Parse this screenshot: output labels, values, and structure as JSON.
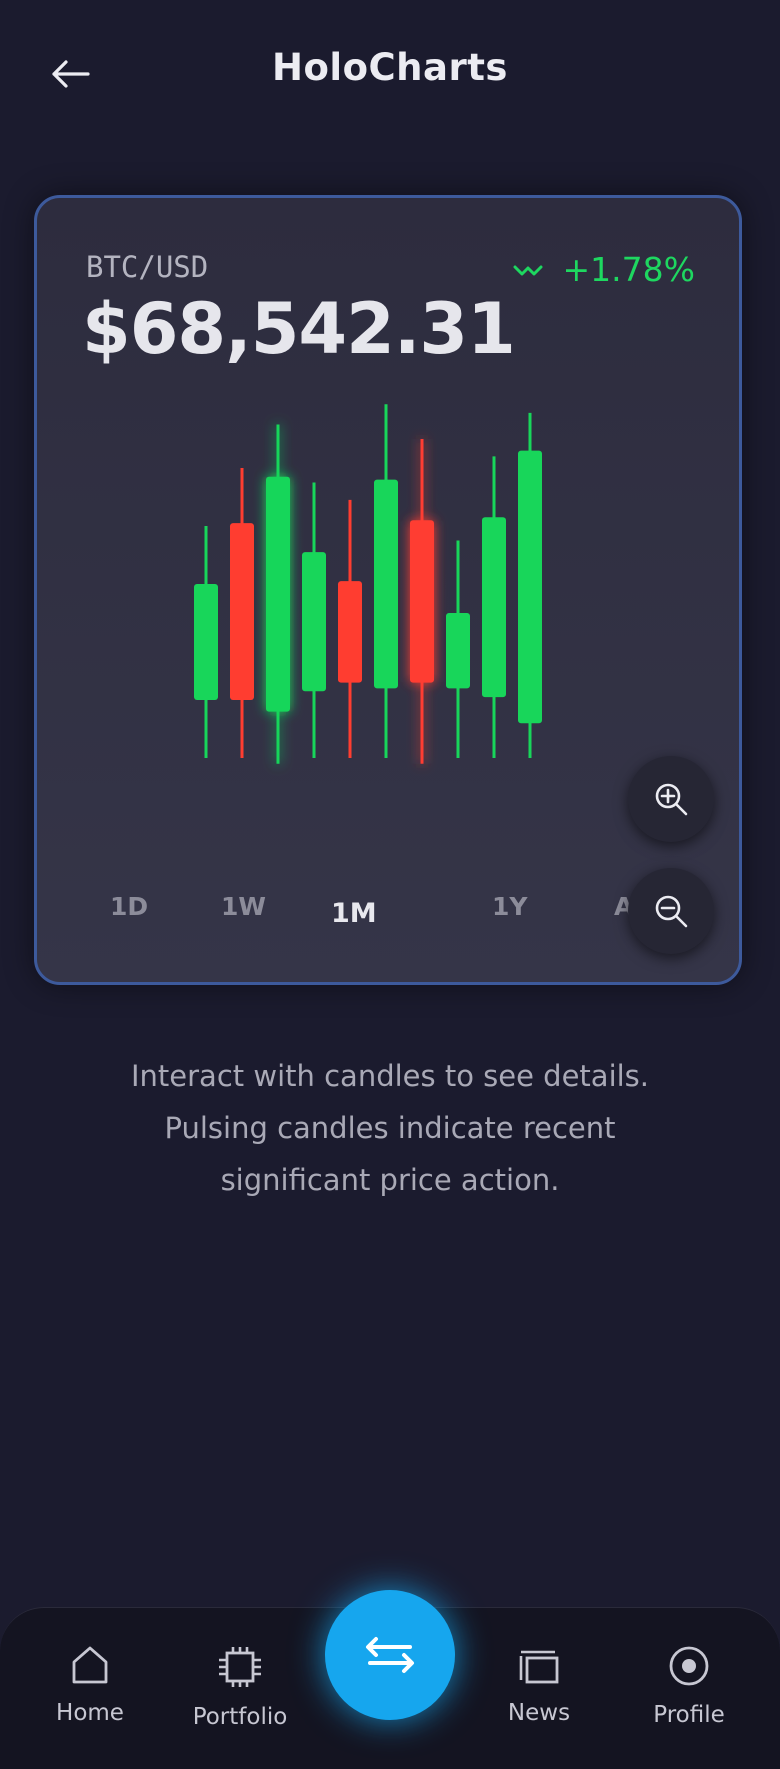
{
  "header": {
    "title": "HoloCharts"
  },
  "ticker": {
    "pair": "BTC/USD",
    "price": "$68,542.31",
    "change": "+1.78%"
  },
  "timeframes": [
    {
      "label": "1D",
      "active": false
    },
    {
      "label": "1W",
      "active": false
    },
    {
      "label": "1M",
      "active": true
    },
    {
      "label": "1Y",
      "active": false
    },
    {
      "label": "ALL",
      "active": false
    }
  ],
  "hint": {
    "line1": "Interact with candles to see details.",
    "line2": "Pulsing candles indicate recent",
    "line3": "significant price action."
  },
  "nav": {
    "home": "Home",
    "portfolio": "Portfolio",
    "news": "News",
    "profile": "Profile"
  },
  "colors": {
    "up": "#18d65a",
    "down": "#ff3d30",
    "accent": "#16a6ee",
    "change": "#1ed760",
    "border": "#3d5a9c"
  },
  "icons": [
    "back-arrow-icon",
    "trend-icon",
    "zoom-in-icon",
    "zoom-out-icon",
    "home-icon",
    "chip-icon",
    "swap-icon",
    "news-icon",
    "profile-icon"
  ],
  "chart_data": {
    "type": "candlestick",
    "candles": [
      {
        "open": 20,
        "close": 60,
        "high": 80,
        "low": 0,
        "pulsing": false
      },
      {
        "open": 81,
        "close": 20,
        "high": 100,
        "low": 0,
        "pulsing": false
      },
      {
        "open": 16,
        "close": 97,
        "high": 115,
        "low": -2,
        "pulsing": true
      },
      {
        "open": 23,
        "close": 71,
        "high": 95,
        "low": 0,
        "pulsing": false
      },
      {
        "open": 61,
        "close": 26,
        "high": 89,
        "low": 0,
        "pulsing": false
      },
      {
        "open": 24,
        "close": 96,
        "high": 122,
        "low": 0,
        "pulsing": false
      },
      {
        "open": 82,
        "close": 26,
        "high": 110,
        "low": -2,
        "pulsing": true
      },
      {
        "open": 24,
        "close": 50,
        "high": 75,
        "low": 0,
        "pulsing": false
      },
      {
        "open": 21,
        "close": 83,
        "high": 104,
        "low": 0,
        "pulsing": false
      },
      {
        "open": 12,
        "close": 106,
        "high": 119,
        "low": 0,
        "pulsing": false
      }
    ]
  }
}
